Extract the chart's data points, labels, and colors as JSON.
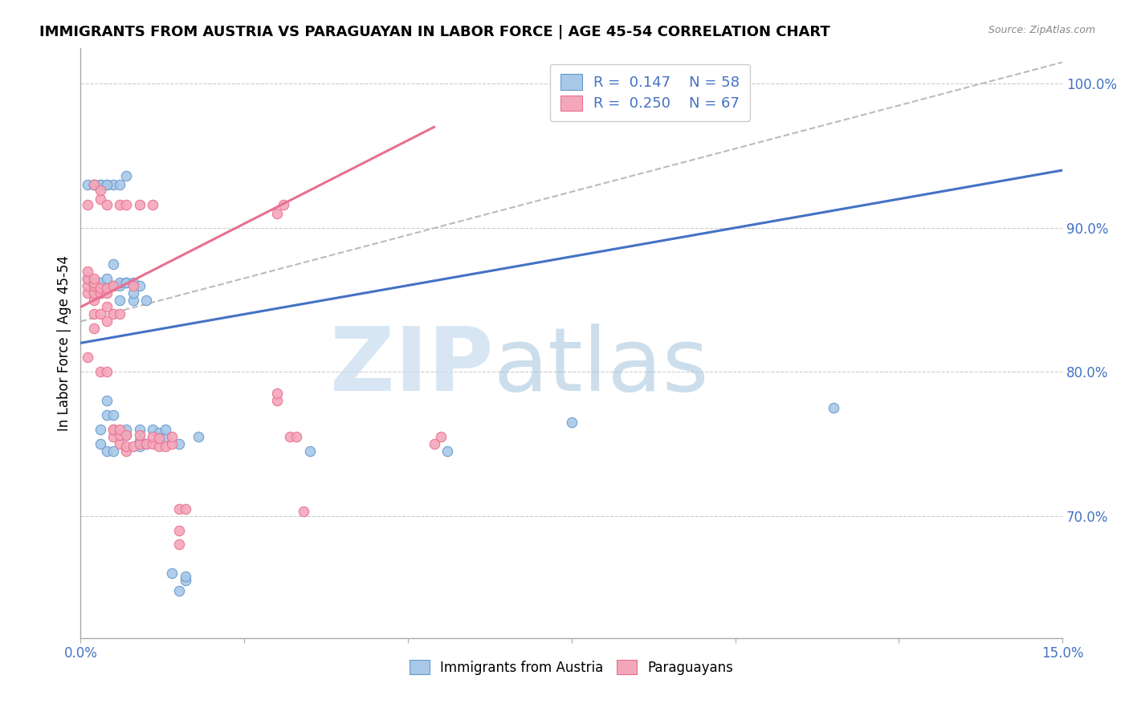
{
  "title": "IMMIGRANTS FROM AUSTRIA VS PARAGUAYAN IN LABOR FORCE | AGE 45-54 CORRELATION CHART",
  "source": "Source: ZipAtlas.com",
  "ylabel": "In Labor Force | Age 45-54",
  "xlim": [
    0.0,
    0.15
  ],
  "ylim": [
    0.615,
    1.025
  ],
  "yticks": [
    0.7,
    0.8,
    0.9,
    1.0
  ],
  "ytick_labels": [
    "70.0%",
    "80.0%",
    "90.0%",
    "100.0%"
  ],
  "xticks": [
    0.0,
    0.025,
    0.05,
    0.075,
    0.1,
    0.125,
    0.15
  ],
  "color_austria": "#A8C8E8",
  "color_paraguay": "#F4A7B9",
  "color_austria_edge": "#6699CC",
  "color_paraguay_edge": "#E87090",
  "color_austria_line": "#4472C4",
  "color_paraguay_line": "#E87090",
  "color_dashed": "#BBBBBB",
  "color_ytick": "#4472C4",
  "color_xtick": "#4472C4",
  "austria_x": [
    0.001,
    0.001,
    0.002,
    0.002,
    0.002,
    0.002,
    0.003,
    0.003,
    0.003,
    0.003,
    0.003,
    0.004,
    0.004,
    0.004,
    0.004,
    0.004,
    0.004,
    0.005,
    0.005,
    0.005,
    0.005,
    0.005,
    0.006,
    0.006,
    0.006,
    0.006,
    0.007,
    0.007,
    0.007,
    0.007,
    0.007,
    0.008,
    0.008,
    0.008,
    0.009,
    0.009,
    0.009,
    0.009,
    0.01,
    0.01,
    0.011,
    0.012,
    0.012,
    0.013,
    0.013,
    0.014,
    0.015,
    0.015,
    0.016,
    0.016,
    0.018,
    0.002,
    0.003,
    0.004,
    0.035,
    0.056,
    0.075,
    0.115
  ],
  "austria_y": [
    0.865,
    0.93,
    0.855,
    0.855,
    0.86,
    0.93,
    0.75,
    0.76,
    0.855,
    0.862,
    0.93,
    0.745,
    0.77,
    0.78,
    0.858,
    0.865,
    0.93,
    0.745,
    0.77,
    0.86,
    0.875,
    0.93,
    0.85,
    0.86,
    0.862,
    0.93,
    0.756,
    0.76,
    0.862,
    0.862,
    0.936,
    0.85,
    0.855,
    0.862,
    0.748,
    0.752,
    0.76,
    0.86,
    0.75,
    0.85,
    0.76,
    0.755,
    0.758,
    0.755,
    0.76,
    0.66,
    0.648,
    0.75,
    0.655,
    0.658,
    0.755,
    0.93,
    0.93,
    0.93,
    0.745,
    0.745,
    0.765,
    0.775
  ],
  "paraguay_x": [
    0.001,
    0.001,
    0.001,
    0.001,
    0.001,
    0.001,
    0.002,
    0.002,
    0.002,
    0.002,
    0.002,
    0.002,
    0.002,
    0.002,
    0.003,
    0.003,
    0.003,
    0.003,
    0.003,
    0.003,
    0.004,
    0.004,
    0.004,
    0.004,
    0.004,
    0.004,
    0.005,
    0.005,
    0.005,
    0.005,
    0.005,
    0.006,
    0.006,
    0.006,
    0.006,
    0.006,
    0.007,
    0.007,
    0.007,
    0.007,
    0.008,
    0.008,
    0.009,
    0.009,
    0.009,
    0.01,
    0.011,
    0.011,
    0.011,
    0.012,
    0.012,
    0.013,
    0.014,
    0.014,
    0.015,
    0.015,
    0.015,
    0.016,
    0.03,
    0.03,
    0.03,
    0.031,
    0.032,
    0.033,
    0.034,
    0.054,
    0.055
  ],
  "paraguay_y": [
    0.81,
    0.855,
    0.86,
    0.865,
    0.87,
    0.916,
    0.83,
    0.84,
    0.85,
    0.855,
    0.86,
    0.862,
    0.865,
    0.93,
    0.8,
    0.84,
    0.855,
    0.858,
    0.92,
    0.926,
    0.8,
    0.835,
    0.845,
    0.855,
    0.858,
    0.916,
    0.755,
    0.76,
    0.76,
    0.84,
    0.86,
    0.75,
    0.756,
    0.76,
    0.84,
    0.916,
    0.745,
    0.748,
    0.756,
    0.916,
    0.748,
    0.86,
    0.75,
    0.756,
    0.916,
    0.75,
    0.75,
    0.755,
    0.916,
    0.748,
    0.754,
    0.748,
    0.75,
    0.755,
    0.68,
    0.69,
    0.705,
    0.705,
    0.78,
    0.785,
    0.91,
    0.916,
    0.755,
    0.755,
    0.703,
    0.75,
    0.755
  ],
  "austria_trendline_x": [
    0.0,
    0.15
  ],
  "austria_trendline_y": [
    0.82,
    0.94
  ],
  "paraguay_trendline_x": [
    0.0,
    0.054
  ],
  "paraguay_trendline_y": [
    0.845,
    0.97
  ],
  "dashed_trendline_x": [
    0.0,
    0.15
  ],
  "dashed_trendline_y": [
    0.835,
    1.015
  ]
}
